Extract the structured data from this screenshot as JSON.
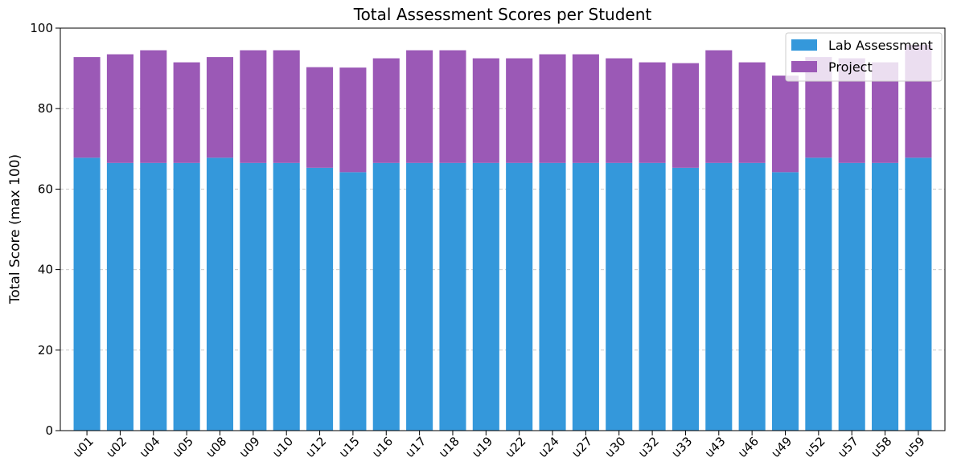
{
  "chart_data": {
    "type": "bar",
    "stacked": true,
    "title": "Total Assessment Scores per Student",
    "xlabel": "",
    "ylabel": "Total Score (max 100)",
    "ylim": [
      0,
      100
    ],
    "yticks": [
      0,
      20,
      40,
      60,
      80,
      100
    ],
    "grid": "y-dashed",
    "legend_position": "top-right",
    "categories": [
      "u01",
      "u02",
      "u04",
      "u05",
      "u08",
      "u09",
      "u10",
      "u12",
      "u15",
      "u16",
      "u17",
      "u18",
      "u19",
      "u22",
      "u24",
      "u27",
      "u30",
      "u32",
      "u33",
      "u43",
      "u46",
      "u49",
      "u52",
      "u57",
      "u58",
      "u59"
    ],
    "series": [
      {
        "name": "Lab Assessment",
        "color": "#3498db",
        "values": [
          67.8,
          66.5,
          66.5,
          66.5,
          67.8,
          66.5,
          66.5,
          65.3,
          64.2,
          66.5,
          66.5,
          66.5,
          66.5,
          66.5,
          66.5,
          66.5,
          66.5,
          66.5,
          65.3,
          66.5,
          66.5,
          64.2,
          67.8,
          66.5,
          66.5,
          67.8
        ]
      },
      {
        "name": "Project",
        "color": "#9b59b6",
        "values": [
          25.0,
          27.0,
          28.0,
          25.0,
          25.0,
          28.0,
          28.0,
          25.0,
          26.0,
          26.0,
          28.0,
          28.0,
          26.0,
          26.0,
          27.0,
          27.0,
          26.0,
          25.0,
          26.0,
          28.0,
          25.0,
          24.0,
          25.0,
          26.0,
          25.0,
          28.0
        ]
      }
    ]
  }
}
